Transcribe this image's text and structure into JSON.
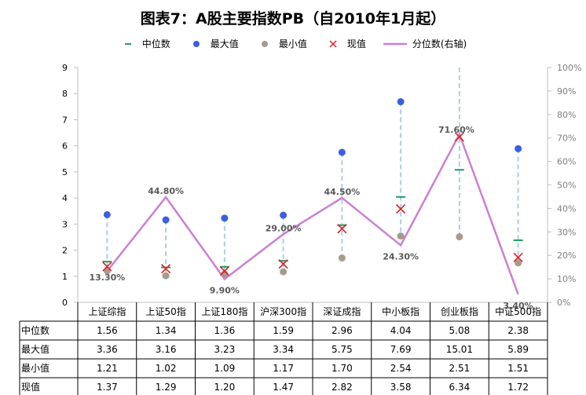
{
  "chart_data": {
    "type": "line",
    "title": "图表7：A股主要指数PB（自2010年1月起）",
    "categories": [
      "上证综指",
      "上证50指",
      "上证180指",
      "沪深300指",
      "深证成指",
      "中小板指",
      "创业板指",
      "中证500指"
    ],
    "y_left": {
      "min": 0,
      "max": 9,
      "step": 1,
      "ticks": [
        "0",
        "1",
        "2",
        "3",
        "4",
        "5",
        "6",
        "7",
        "8",
        "9"
      ]
    },
    "y_right": {
      "min": 0,
      "max": 1,
      "step": 0.1,
      "ticks": [
        "0%",
        "10%",
        "20%",
        "30%",
        "40%",
        "50%",
        "60%",
        "70%",
        "80%",
        "90%",
        "100%"
      ]
    },
    "grid": false,
    "legend_position": "top",
    "series": [
      {
        "name": "中位数",
        "axis": "left",
        "marker": "dash",
        "color": "#1e9e5a",
        "values": [
          1.56,
          1.34,
          1.36,
          1.59,
          2.96,
          4.04,
          5.08,
          2.38
        ],
        "display": [
          "1.56",
          "1.34",
          "1.36",
          "1.59",
          "2.96",
          "4.04",
          "5.08",
          "2.38"
        ]
      },
      {
        "name": "最大值",
        "axis": "left",
        "marker": "dot",
        "color": "#3b5fe0",
        "values": [
          3.36,
          3.16,
          3.23,
          3.34,
          5.75,
          7.69,
          15.01,
          5.89
        ],
        "display": [
          "3.36",
          "3.16",
          "3.23",
          "3.34",
          "5.75",
          "7.69",
          "15.01",
          "5.89"
        ]
      },
      {
        "name": "最小值",
        "axis": "left",
        "marker": "dot",
        "color": "#a79a8e",
        "values": [
          1.21,
          1.02,
          1.09,
          1.17,
          1.7,
          2.54,
          2.51,
          1.51
        ],
        "display": [
          "1.21",
          "1.02",
          "1.09",
          "1.17",
          "1.70",
          "2.54",
          "2.51",
          "1.51"
        ]
      },
      {
        "name": "现值",
        "axis": "left",
        "marker": "x",
        "color": "#e02020",
        "values": [
          1.37,
          1.29,
          1.2,
          1.47,
          2.82,
          3.58,
          6.34,
          1.72
        ],
        "display": [
          "1.37",
          "1.29",
          "1.20",
          "1.47",
          "2.82",
          "3.58",
          "6.34",
          "1.72"
        ]
      },
      {
        "name": "分位数(右轴)",
        "axis": "right",
        "marker": "line",
        "color": "#cc7fd1",
        "values": [
          0.133,
          0.448,
          0.099,
          0.29,
          0.445,
          0.243,
          0.716,
          0.034
        ],
        "labels": [
          "13.30%",
          "44.80%",
          "9.90%",
          "29.00%",
          "44.50%",
          "24.30%",
          "71.60%",
          "3.40%"
        ]
      }
    ],
    "range_line_color": "#a9cdf0",
    "table_rows": [
      "中位数",
      "最大值",
      "最小值",
      "现值"
    ]
  }
}
